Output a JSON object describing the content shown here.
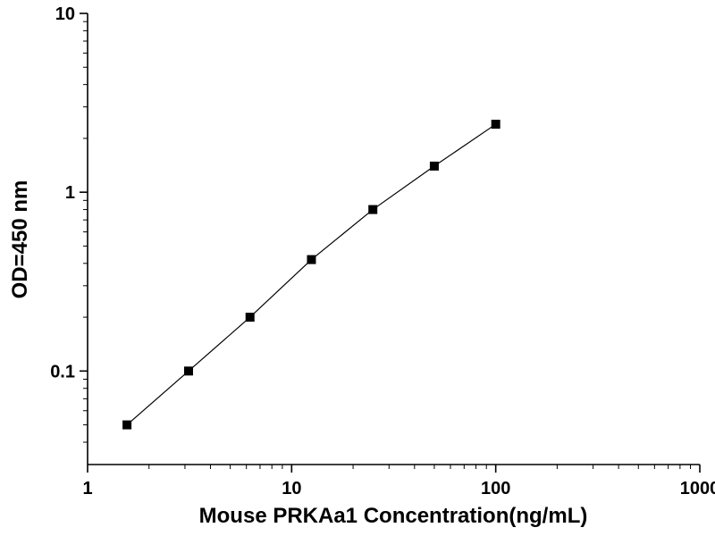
{
  "page": {
    "background_color": "#ffffff"
  },
  "chart_data": {
    "type": "scatter",
    "subtype": "line-with-square-markers",
    "title": "",
    "xlabel": "Mouse PRKAa1 Concentration(ng/mL)",
    "ylabel": "OD=450 nm",
    "x_scale": "log",
    "y_scale": "log",
    "xlim": [
      1,
      1000
    ],
    "ylim": [
      0.03,
      10
    ],
    "x": [
      1.56,
      3.125,
      6.25,
      12.5,
      25,
      50,
      100
    ],
    "y": [
      0.05,
      0.1,
      0.2,
      0.42,
      0.8,
      1.4,
      2.4
    ],
    "x_ticks": [
      {
        "value": 1,
        "label": "1"
      },
      {
        "value": 10,
        "label": "10"
      },
      {
        "value": 100,
        "label": "100"
      },
      {
        "value": 1000,
        "label": "1000"
      }
    ],
    "y_ticks": [
      {
        "value": 0.1,
        "label": "0.1"
      },
      {
        "value": 1,
        "label": "1"
      },
      {
        "value": 10,
        "label": "10"
      }
    ],
    "grid": false,
    "legend": "none",
    "marker": "square",
    "marker_color": "#000000",
    "line_color": "#000000",
    "axis_color": "#000000"
  }
}
